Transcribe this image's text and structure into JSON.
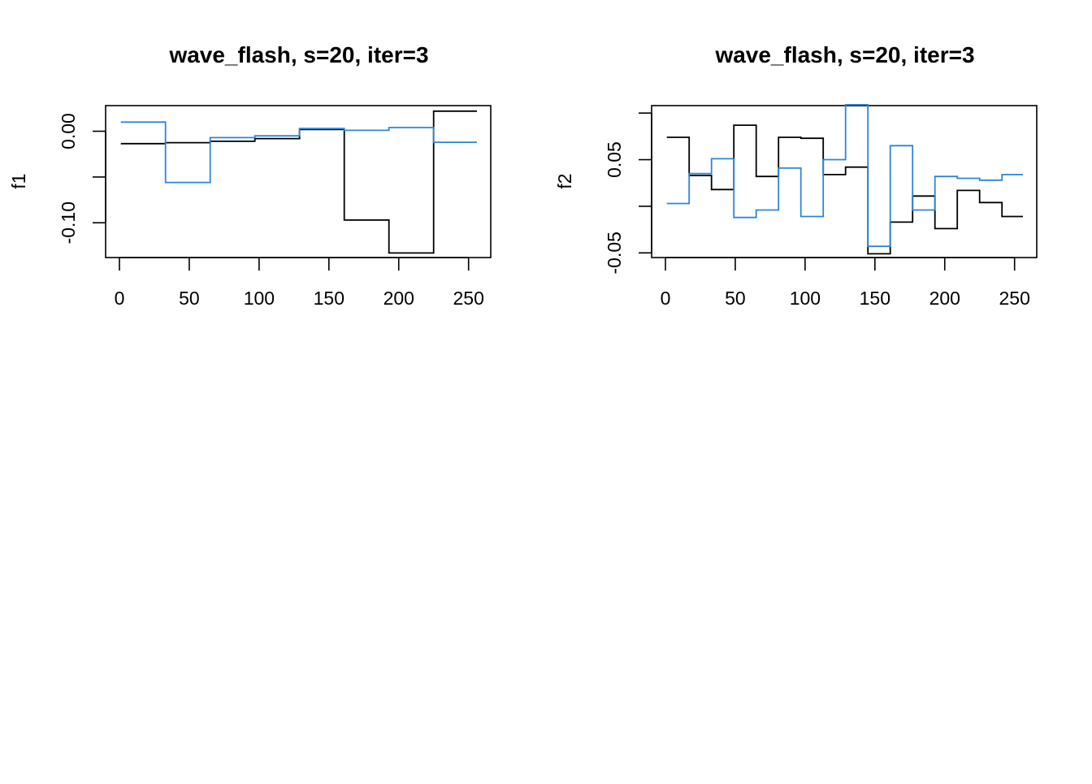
{
  "chart_data": [
    {
      "type": "line",
      "title": "wave_flash, s=20, iter=3",
      "xlabel": "",
      "ylabel": "f1",
      "xlim": [
        0,
        256
      ],
      "ylim": [
        -0.138,
        0.028
      ],
      "xticks": [
        0,
        50,
        100,
        150,
        200,
        250
      ],
      "xtick_labels": [
        "0",
        "50",
        "100",
        "150",
        "200",
        "250"
      ],
      "yticks": [
        0.0,
        -0.05,
        -0.1
      ],
      "ytick_labels": [
        "0.00",
        "",
        "-0.10"
      ],
      "grid": false,
      "step_edges": [
        1,
        33,
        65,
        97,
        129,
        161,
        193,
        225,
        256
      ],
      "series": [
        {
          "color": "#000000",
          "values": [
            -0.0135,
            -0.0125,
            -0.011,
            -0.008,
            0.002,
            -0.097,
            -0.133,
            0.022
          ]
        },
        {
          "color": "#2a86d8",
          "values": [
            0.01,
            -0.056,
            -0.007,
            -0.005,
            0.003,
            0.001,
            0.004,
            -0.012
          ]
        }
      ]
    },
    {
      "type": "line",
      "title": "wave_flash, s=20, iter=3",
      "xlabel": "",
      "ylabel": "f2",
      "xlim": [
        0,
        256
      ],
      "ylim": [
        -0.055,
        0.108
      ],
      "xticks": [
        0,
        50,
        100,
        150,
        200,
        250
      ],
      "xtick_labels": [
        "0",
        "50",
        "100",
        "150",
        "200",
        "250"
      ],
      "yticks": [
        0.1,
        0.05,
        0.0,
        -0.05
      ],
      "ytick_labels": [
        "",
        "0.05",
        "",
        "-0.05"
      ],
      "grid": false,
      "step_edges": [
        1,
        17,
        33,
        49,
        65,
        81,
        97,
        113,
        129,
        145,
        161,
        177,
        193,
        209,
        225,
        241,
        256
      ],
      "series": [
        {
          "color": "#000000",
          "values": [
            0.074,
            0.033,
            0.018,
            0.087,
            0.032,
            0.074,
            0.073,
            0.034,
            0.042,
            -0.051,
            -0.017,
            0.011,
            -0.024,
            0.017,
            0.004,
            -0.011
          ]
        },
        {
          "color": "#2a86d8",
          "values": [
            0.003,
            0.035,
            0.051,
            -0.012,
            -0.004,
            0.041,
            -0.011,
            0.05,
            0.109,
            -0.043,
            0.065,
            -0.004,
            0.032,
            0.03,
            0.028,
            0.034
          ]
        }
      ]
    }
  ]
}
